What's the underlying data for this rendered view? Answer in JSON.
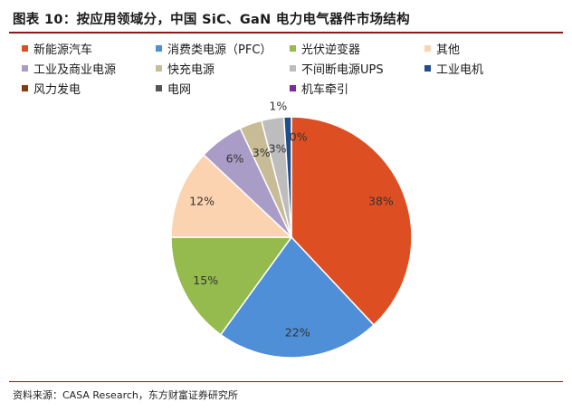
{
  "title": "图表 10：按应用领域分，中国 SiC、GaN 电力电气器件市场结构",
  "source": "资料来源：CASA Research，东方财富证券研究所",
  "chart_data": {
    "type": "pie",
    "title": "",
    "legend_placement": "top",
    "series": [
      {
        "name": "新能源汽车",
        "value": 38,
        "label": "38%",
        "color": "#dd4e22"
      },
      {
        "name": "消费类电源（PFC）",
        "value": 22,
        "label": "22%",
        "color": "#4f8fd8"
      },
      {
        "name": "光伏逆变器",
        "value": 15,
        "label": "15%",
        "color": "#95ba4e"
      },
      {
        "name": "其他",
        "value": 12,
        "label": "12%",
        "color": "#fbd3b0"
      },
      {
        "name": "工业及商业电源",
        "value": 6,
        "label": "6%",
        "color": "#a99cc7"
      },
      {
        "name": "快充电源",
        "value": 3,
        "label": "3%",
        "color": "#c8bc96"
      },
      {
        "name": "不间断电源UPS",
        "value": 3,
        "label": "3%",
        "color": "#bdbdbd"
      },
      {
        "name": "工业电机",
        "value": 1,
        "label": "1%",
        "color": "#1f4e8c"
      },
      {
        "name": "风力发电",
        "value": 0,
        "label": "0%",
        "color": "#8b3a0f"
      },
      {
        "name": "电网",
        "value": 0,
        "label": "",
        "color": "#555555"
      },
      {
        "name": "机车牵引",
        "value": 0,
        "label": "",
        "color": "#7a2aa0"
      }
    ]
  }
}
